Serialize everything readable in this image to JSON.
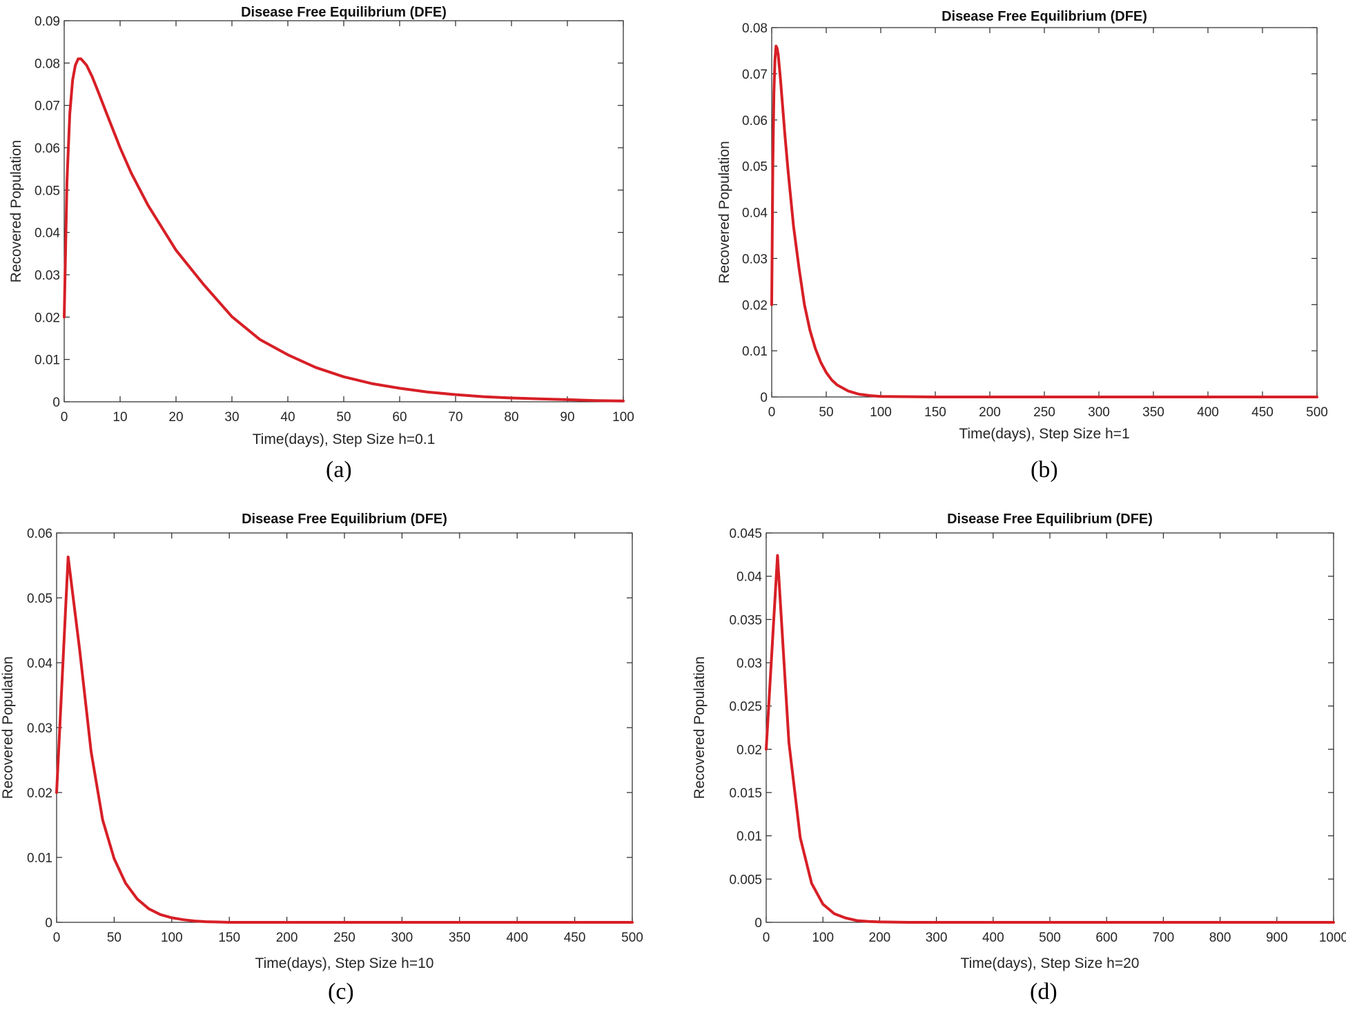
{
  "figure": {
    "chart_data": [
      {
        "id": "a",
        "type": "line",
        "title": "Disease Free Equilibrium (DFE)",
        "xlabel": "Time(days), Step Size h=0.1",
        "ylabel": "Recovered Population",
        "caption": "(a)",
        "xlim": [
          0,
          100
        ],
        "ylim": [
          0,
          0.09
        ],
        "xticks": [
          0,
          10,
          20,
          30,
          40,
          50,
          60,
          70,
          80,
          90,
          100
        ],
        "xtick_labels": [
          "0",
          "10",
          "20",
          "30",
          "40",
          "50",
          "60",
          "70",
          "80",
          "90",
          "100"
        ],
        "yticks": [
          0,
          0.01,
          0.02,
          0.03,
          0.04,
          0.05,
          0.06,
          0.07,
          0.08,
          0.09
        ],
        "ytick_labels": [
          "0",
          "0.01",
          "0.02",
          "0.03",
          "0.04",
          "0.05",
          "0.06",
          "0.07",
          "0.08",
          "0.09"
        ],
        "series": [
          {
            "name": "Recovered",
            "color": "#d71f26",
            "x": [
              0,
              0.5,
              1,
              1.5,
              2,
              2.5,
              3,
              4,
              5,
              6,
              8,
              10,
              12,
              15,
              20,
              25,
              30,
              35,
              40,
              45,
              50,
              55,
              60,
              65,
              70,
              75,
              80,
              85,
              90,
              95,
              100
            ],
            "y": [
              0.02,
              0.052,
              0.068,
              0.076,
              0.0795,
              0.081,
              0.081,
              0.0795,
              0.0768,
              0.0735,
              0.0667,
              0.06,
              0.054,
              0.0464,
              0.0358,
              0.0276,
              0.0201,
              0.0147,
              0.0111,
              0.0081,
              0.0059,
              0.0043,
              0.0032,
              0.0023,
              0.0017,
              0.0012,
              0.0009,
              0.0007,
              0.0005,
              0.0003,
              0.0002
            ]
          }
        ]
      },
      {
        "id": "b",
        "type": "line",
        "title": "Disease Free Equilibrium (DFE)",
        "xlabel": "Time(days), Step Size h=1",
        "ylabel": "Recovered Population",
        "caption": "(b)",
        "xlim": [
          0,
          500
        ],
        "ylim": [
          0,
          0.08
        ],
        "xticks": [
          0,
          50,
          100,
          150,
          200,
          250,
          300,
          350,
          400,
          450,
          500
        ],
        "xtick_labels": [
          "0",
          "50",
          "100",
          "150",
          "200",
          "250",
          "300",
          "350",
          "400",
          "450",
          "500"
        ],
        "yticks": [
          0,
          0.01,
          0.02,
          0.03,
          0.04,
          0.05,
          0.06,
          0.07,
          0.08
        ],
        "ytick_labels": [
          "0",
          "0.01",
          "0.02",
          "0.03",
          "0.04",
          "0.05",
          "0.06",
          "0.07",
          "0.08"
        ],
        "series": [
          {
            "name": "Recovered",
            "color": "#d71f26",
            "x": [
              0,
              1,
              2,
              3,
              4,
              5,
              6,
              8,
              10,
              12,
              15,
              20,
              25,
              30,
              35,
              40,
              45,
              50,
              55,
              60,
              70,
              80,
              90,
              100,
              150,
              200,
              250,
              300,
              350,
              400,
              450,
              500
            ],
            "y": [
              0.02,
              0.05,
              0.066,
              0.073,
              0.076,
              0.0755,
              0.074,
              0.069,
              0.063,
              0.057,
              0.049,
              0.037,
              0.028,
              0.02,
              0.0145,
              0.0105,
              0.0075,
              0.0053,
              0.0037,
              0.0026,
              0.0013,
              0.0006,
              0.0003,
              0.0001,
              0,
              0,
              0,
              0,
              0,
              0,
              0,
              0
            ]
          }
        ]
      },
      {
        "id": "c",
        "type": "line",
        "title": "Disease Free Equilibrium (DFE)",
        "xlabel": "Time(days), Step Size h=10",
        "ylabel": "Recovered Population",
        "caption": "(c)",
        "xlim": [
          0,
          500
        ],
        "ylim": [
          0,
          0.06
        ],
        "xticks": [
          0,
          50,
          100,
          150,
          200,
          250,
          300,
          350,
          400,
          450,
          500
        ],
        "xtick_labels": [
          "0",
          "50",
          "100",
          "150",
          "200",
          "250",
          "300",
          "350",
          "400",
          "450",
          "500"
        ],
        "yticks": [
          0,
          0.01,
          0.02,
          0.03,
          0.04,
          0.05,
          0.06
        ],
        "ytick_labels": [
          "0",
          "0.01",
          "0.02",
          "0.03",
          "0.04",
          "0.05",
          "0.06"
        ],
        "series": [
          {
            "name": "Recovered",
            "color": "#d71f26",
            "x": [
              0,
              10,
              20,
              30,
              40,
              50,
              60,
              70,
              80,
              90,
              100,
              110,
              120,
              130,
              140,
              150,
              200,
              250,
              300,
              350,
              400,
              450,
              500
            ],
            "y": [
              0.02,
              0.0563,
              0.042,
              0.0263,
              0.0158,
              0.0098,
              0.006,
              0.0036,
              0.0021,
              0.0012,
              0.0007,
              0.0004,
              0.0002,
              0.0001,
              5e-05,
              0,
              0,
              0,
              0,
              0,
              0,
              0,
              0
            ]
          }
        ]
      },
      {
        "id": "d",
        "type": "line",
        "title": "Disease Free Equilibrium (DFE)",
        "xlabel": "Time(days), Step Size h=20",
        "ylabel": "Recovered Population",
        "caption": "(d)",
        "xlim": [
          0,
          1000
        ],
        "ylim": [
          0,
          0.045
        ],
        "xticks": [
          0,
          100,
          200,
          300,
          400,
          500,
          600,
          700,
          800,
          900,
          1000
        ],
        "xtick_labels": [
          "0",
          "100",
          "200",
          "300",
          "400",
          "500",
          "600",
          "700",
          "800",
          "900",
          "1000"
        ],
        "yticks": [
          0,
          0.005,
          0.01,
          0.015,
          0.02,
          0.025,
          0.03,
          0.035,
          0.04,
          0.045
        ],
        "ytick_labels": [
          "0",
          "0.005",
          "0.01",
          "0.015",
          "0.02",
          "0.025",
          "0.03",
          "0.035",
          "0.04",
          "0.045"
        ],
        "series": [
          {
            "name": "Recovered",
            "color": "#d71f26",
            "x": [
              0,
              20,
              40,
              60,
              80,
              100,
              120,
              140,
              160,
              180,
              200,
              250,
              300,
              400,
              500,
              600,
              700,
              800,
              900,
              1000
            ],
            "y": [
              0.02,
              0.0424,
              0.0208,
              0.0098,
              0.0045,
              0.0021,
              0.001,
              0.0005,
              0.0002,
              0.0001,
              5e-05,
              0,
              0,
              0,
              0,
              0,
              0,
              0,
              0,
              0
            ]
          }
        ]
      }
    ]
  }
}
